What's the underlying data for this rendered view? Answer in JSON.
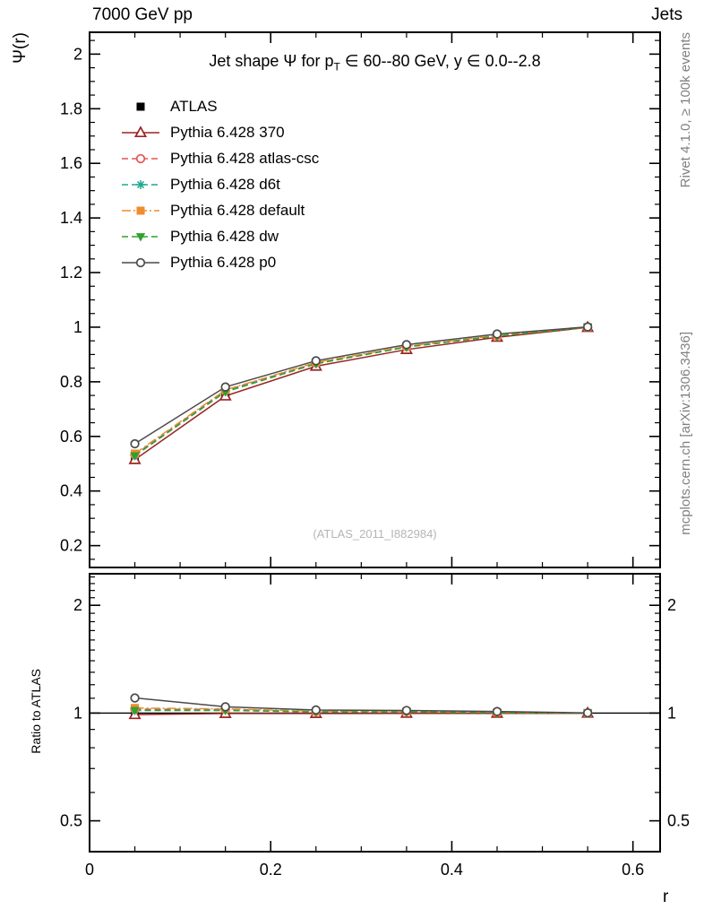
{
  "header": {
    "left": "7000 GeV pp",
    "right": "Jets"
  },
  "titles": {
    "title_pre": "Jet shape Ψ for p",
    "title_sub": "T",
    "title_post": " ∈ 60--80 GeV, y ∈ 0.0--2.8",
    "main_ylabel": "Ψ(r)",
    "ratio_ylabel": "Ratio to ATLAS",
    "xlabel": "r",
    "watermark": "(ATLAS_2011_I882984)",
    "side_top": "Rivet 4.1.0, ≥ 100k events",
    "side_bottom": "mcplots.cern.ch [arXiv:1306.3436]"
  },
  "chart_data": {
    "type": "line",
    "title": "Jet shape Ψ for pT ∈ 60--80 GeV, y ∈ 0.0--2.8",
    "xlabel": "r",
    "x": [
      0.05,
      0.15,
      0.25,
      0.35,
      0.45,
      0.55
    ],
    "xlim": [
      0,
      0.63
    ],
    "x_major_ticks": [
      0,
      0.2,
      0.4,
      0.6
    ],
    "main_panel": {
      "ylabel": "Ψ(r)",
      "scale": "linear",
      "ylim": [
        0.12,
        2.08
      ],
      "major_ticks": [
        0.2,
        0.4,
        0.6,
        0.8,
        1,
        1.2,
        1.4,
        1.6,
        1.8,
        2
      ]
    },
    "ratio_panel": {
      "ylabel": "Ratio to ATLAS",
      "scale": "log",
      "ylim": [
        0.41,
        2.45
      ],
      "major_ticks": [
        0.5,
        1,
        2
      ],
      "reference_line": 1
    },
    "legend_position": "top-left",
    "series": [
      {
        "name": "ATLAS",
        "color": "#000000",
        "marker": "square-filled",
        "line": "none",
        "values": [
          0.52,
          0.75,
          0.86,
          0.92,
          0.965,
          1.0
        ],
        "ratio": [
          1,
          1,
          1,
          1,
          1,
          1
        ]
      },
      {
        "name": "Pythia 6.428 370",
        "color": "#9a2424",
        "marker": "triangle-open",
        "line": "solid",
        "values": [
          0.515,
          0.748,
          0.857,
          0.918,
          0.963,
          0.999
        ],
        "ratio": [
          0.99,
          0.997,
          0.997,
          0.998,
          0.998,
          0.999
        ]
      },
      {
        "name": "Pythia 6.428 atlas-csc",
        "color": "#e8524f",
        "marker": "circle-open",
        "line": "dashed",
        "values": [
          0.533,
          0.768,
          0.869,
          0.929,
          0.969,
          1.0
        ],
        "ratio": [
          1.025,
          1.024,
          1.01,
          1.01,
          1.004,
          1.0
        ]
      },
      {
        "name": "Pythia 6.428 d6t",
        "color": "#1fa78f",
        "marker": "asterisk",
        "line": "dashed",
        "values": [
          0.53,
          0.765,
          0.867,
          0.928,
          0.968,
          1.0
        ],
        "ratio": [
          1.019,
          1.02,
          1.008,
          1.009,
          1.003,
          1.0
        ]
      },
      {
        "name": "Pythia 6.428 default",
        "color": "#f18b2f",
        "marker": "square-filled",
        "line": "dashdot",
        "values": [
          0.537,
          0.77,
          0.871,
          0.93,
          0.97,
          1.0
        ],
        "ratio": [
          1.033,
          1.027,
          1.013,
          1.011,
          1.005,
          1.0
        ]
      },
      {
        "name": "Pythia 6.428 dw",
        "color": "#2fa12f",
        "marker": "triangle-down-filled",
        "line": "dashed",
        "values": [
          0.529,
          0.763,
          0.866,
          0.927,
          0.967,
          1.0
        ],
        "ratio": [
          1.017,
          1.017,
          1.007,
          1.008,
          1.002,
          1.0
        ]
      },
      {
        "name": "Pythia 6.428 p0",
        "color": "#4a4a4a",
        "marker": "circle-open",
        "line": "solid",
        "values": [
          0.573,
          0.781,
          0.877,
          0.936,
          0.975,
          1.001
        ],
        "ratio": [
          1.102,
          1.041,
          1.02,
          1.017,
          1.01,
          1.001
        ]
      }
    ]
  }
}
